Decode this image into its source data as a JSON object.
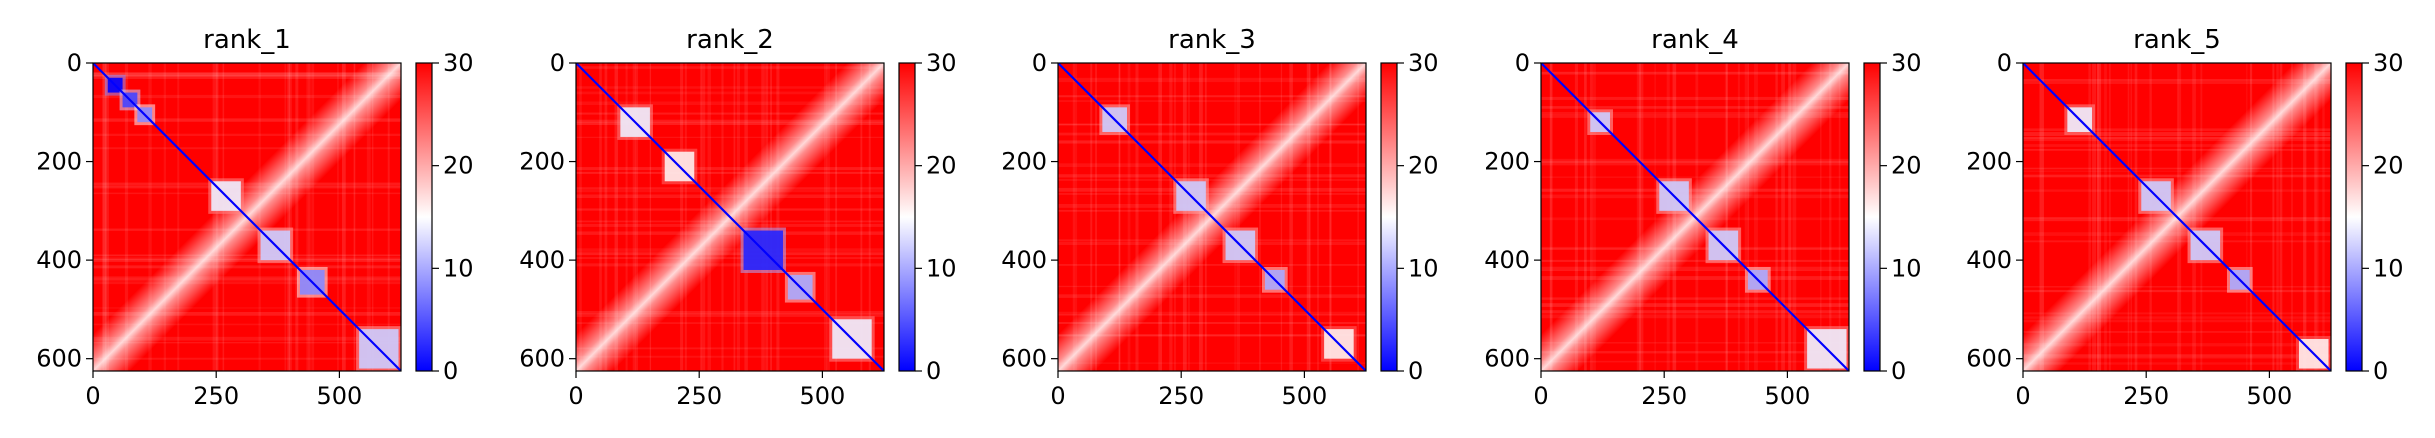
{
  "figure": {
    "colors": {
      "low": "#0000ff",
      "mid": "#ffffff",
      "high": "#ff0000"
    }
  },
  "chart_data": [
    {
      "type": "heatmap",
      "title": "rank_1",
      "xlim": [
        0,
        625
      ],
      "ylim": [
        625,
        0
      ],
      "x_ticks": [
        0,
        250,
        500
      ],
      "y_ticks": [
        0,
        200,
        400,
        600
      ],
      "colorbar": {
        "range": [
          0,
          30
        ],
        "ticks": [
          0,
          10,
          20,
          30
        ]
      },
      "blocks": [
        {
          "start": 30,
          "end": 60,
          "value": 0
        },
        {
          "start": 60,
          "end": 90,
          "value": 4
        },
        {
          "start": 90,
          "end": 120,
          "value": 8
        },
        {
          "start": 240,
          "end": 300,
          "value": 14
        },
        {
          "start": 340,
          "end": 400,
          "value": 12
        },
        {
          "start": 420,
          "end": 470,
          "value": 8
        },
        {
          "start": 540,
          "end": 620,
          "value": 12
        }
      ]
    },
    {
      "type": "heatmap",
      "title": "rank_2",
      "xlim": [
        0,
        625
      ],
      "ylim": [
        625,
        0
      ],
      "x_ticks": [
        0,
        250,
        500
      ],
      "y_ticks": [
        0,
        200,
        400,
        600
      ],
      "colorbar": {
        "range": [
          0,
          30
        ],
        "ticks": [
          0,
          10,
          20,
          30
        ]
      },
      "blocks": [
        {
          "start": 90,
          "end": 150,
          "value": 14
        },
        {
          "start": 180,
          "end": 240,
          "value": 16
        },
        {
          "start": 340,
          "end": 420,
          "value": 2
        },
        {
          "start": 430,
          "end": 480,
          "value": 10
        },
        {
          "start": 520,
          "end": 600,
          "value": 14
        }
      ]
    },
    {
      "type": "heatmap",
      "title": "rank_3",
      "xlim": [
        0,
        625
      ],
      "ylim": [
        625,
        0
      ],
      "x_ticks": [
        0,
        250,
        500
      ],
      "y_ticks": [
        0,
        200,
        400,
        600
      ],
      "colorbar": {
        "range": [
          0,
          30
        ],
        "ticks": [
          0,
          10,
          20,
          30
        ]
      },
      "blocks": [
        {
          "start": 90,
          "end": 140,
          "value": 12
        },
        {
          "start": 240,
          "end": 300,
          "value": 12
        },
        {
          "start": 340,
          "end": 400,
          "value": 12
        },
        {
          "start": 420,
          "end": 460,
          "value": 10
        },
        {
          "start": 540,
          "end": 600,
          "value": 16
        }
      ]
    },
    {
      "type": "heatmap",
      "title": "rank_4",
      "xlim": [
        0,
        625
      ],
      "ylim": [
        625,
        0
      ],
      "x_ticks": [
        0,
        250,
        500
      ],
      "y_ticks": [
        0,
        200,
        400,
        600
      ],
      "colorbar": {
        "range": [
          0,
          30
        ],
        "ticks": [
          0,
          10,
          20,
          30
        ]
      },
      "blocks": [
        {
          "start": 100,
          "end": 140,
          "value": 12
        },
        {
          "start": 240,
          "end": 300,
          "value": 12
        },
        {
          "start": 340,
          "end": 400,
          "value": 12
        },
        {
          "start": 420,
          "end": 460,
          "value": 10
        },
        {
          "start": 540,
          "end": 620,
          "value": 14
        }
      ]
    },
    {
      "type": "heatmap",
      "title": "rank_5",
      "xlim": [
        0,
        625
      ],
      "ylim": [
        625,
        0
      ],
      "x_ticks": [
        0,
        250,
        500
      ],
      "y_ticks": [
        0,
        200,
        400,
        600
      ],
      "colorbar": {
        "range": [
          0,
          30
        ],
        "ticks": [
          0,
          10,
          20,
          30
        ]
      },
      "blocks": [
        {
          "start": 90,
          "end": 140,
          "value": 14
        },
        {
          "start": 240,
          "end": 300,
          "value": 12
        },
        {
          "start": 340,
          "end": 400,
          "value": 12
        },
        {
          "start": 420,
          "end": 460,
          "value": 10
        },
        {
          "start": 560,
          "end": 620,
          "value": 16
        }
      ]
    }
  ]
}
